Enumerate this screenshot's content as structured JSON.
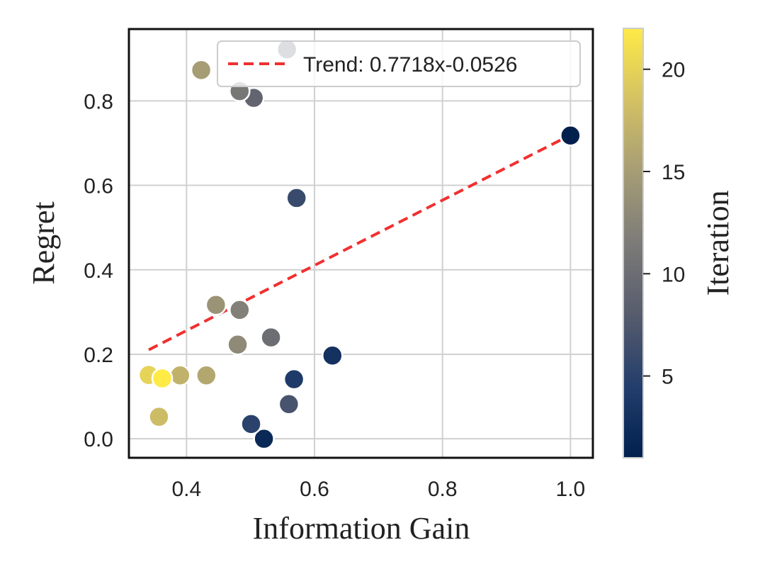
{
  "chart_data": {
    "type": "scatter",
    "xlabel": "Information Gain",
    "ylabel": "Regret",
    "xlim": [
      0.31,
      1.035
    ],
    "ylim": [
      -0.045,
      0.97
    ],
    "xticks": [
      0.4,
      0.6,
      0.8,
      1.0
    ],
    "xtick_labels": [
      "0.4",
      "0.6",
      "0.8",
      "1.0"
    ],
    "yticks": [
      0.0,
      0.2,
      0.4,
      0.6,
      0.8
    ],
    "ytick_labels": [
      "0.0",
      "0.2",
      "0.4",
      "0.6",
      "0.8"
    ],
    "grid": true,
    "points": [
      {
        "x": 1.0,
        "y": 0.718,
        "iteration": 1
      },
      {
        "x": 0.521,
        "y": 0.0,
        "iteration": 2
      },
      {
        "x": 0.628,
        "y": 0.197,
        "iteration": 3
      },
      {
        "x": 0.568,
        "y": 0.141,
        "iteration": 4
      },
      {
        "x": 0.501,
        "y": 0.035,
        "iteration": 5
      },
      {
        "x": 0.572,
        "y": 0.57,
        "iteration": 6
      },
      {
        "x": 0.56,
        "y": 0.082,
        "iteration": 7
      },
      {
        "x": 0.557,
        "y": 0.922,
        "iteration": 8
      },
      {
        "x": 0.505,
        "y": 0.807,
        "iteration": 9
      },
      {
        "x": 0.532,
        "y": 0.24,
        "iteration": 10
      },
      {
        "x": 0.483,
        "y": 0.823,
        "iteration": 11
      },
      {
        "x": 0.483,
        "y": 0.305,
        "iteration": 12
      },
      {
        "x": 0.48,
        "y": 0.223,
        "iteration": 13
      },
      {
        "x": 0.446,
        "y": 0.317,
        "iteration": 14
      },
      {
        "x": 0.423,
        "y": 0.873,
        "iteration": 15
      },
      {
        "x": 0.431,
        "y": 0.15,
        "iteration": 16
      },
      {
        "x": 0.39,
        "y": 0.15,
        "iteration": 17
      },
      {
        "x": 0.357,
        "y": 0.052,
        "iteration": 18
      },
      {
        "x": 0.341,
        "y": 0.151,
        "iteration": 20
      },
      {
        "x": 0.362,
        "y": 0.143,
        "iteration": 22
      }
    ],
    "trend": {
      "label": "Trend: 0.7718x-0.0526",
      "slope": 0.7718,
      "intercept": -0.0526,
      "x_range": [
        0.341,
        1.0
      ],
      "color": "#f03030"
    },
    "legend": {
      "position": "top-right"
    },
    "colorbar": {
      "label": "Iteration",
      "min": 1,
      "max": 22,
      "ticks": [
        5,
        10,
        15,
        20
      ],
      "tick_labels": [
        "5",
        "10",
        "15",
        "20"
      ],
      "colormap": "cividis",
      "colors": [
        "#00204d",
        "#233e6c",
        "#575c6d",
        "#7c7b78",
        "#a69d75",
        "#d3c164",
        "#ffea46"
      ]
    }
  }
}
